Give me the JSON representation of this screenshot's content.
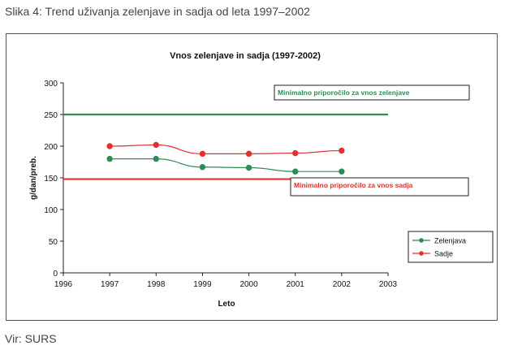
{
  "caption": "Slika 4: Trend uživanja zelenjave in sadja od leta 1997–2002",
  "source": "Vir: SURS",
  "chart_data": {
    "type": "line",
    "title": "Vnos zelenjave in sadja (1997-2002)",
    "xlabel": "Leto",
    "ylabel": "g/dan/preb.",
    "xlim": [
      1996,
      2003
    ],
    "ylim": [
      0,
      300
    ],
    "xticks": [
      1996,
      1997,
      1998,
      1999,
      2000,
      2001,
      2002,
      2003
    ],
    "yticks": [
      0,
      50,
      100,
      150,
      200,
      250,
      300
    ],
    "grid": false,
    "legend_position": "right",
    "x": [
      1997,
      1998,
      1999,
      2000,
      2001,
      2002
    ],
    "series": [
      {
        "name": "Zelenjava",
        "color": "#2e8b57",
        "values": [
          180,
          180,
          167,
          166,
          160,
          160
        ]
      },
      {
        "name": "Sadje",
        "color": "#e03030",
        "values": [
          200,
          202,
          188,
          188,
          189,
          193
        ]
      }
    ],
    "reference_lines": [
      {
        "label": "Minimalno priporočilo za vnos  zelenjave",
        "value": 250,
        "color": "#2e8b57"
      },
      {
        "label": "Minimalno priporočilo za vnos sadja",
        "value": 148,
        "color": "#e03030"
      }
    ]
  }
}
